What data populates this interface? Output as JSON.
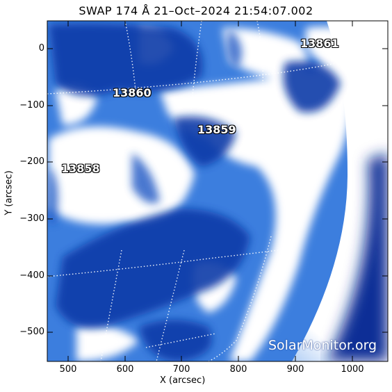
{
  "title": "SWAP 174 Å 21–Oct–2024 21:54:07.002",
  "axes": {
    "xlabel": "X (arcsec)",
    "ylabel": "Y (arcsec)",
    "xticks": [
      "500",
      "600",
      "700",
      "800",
      "900",
      "1000"
    ],
    "yticks": [
      "0",
      "−100",
      "−200",
      "−300",
      "−400",
      "−500"
    ]
  },
  "active_regions": [
    {
      "id": "13861"
    },
    {
      "id": "13860"
    },
    {
      "id": "13859"
    },
    {
      "id": "13858"
    }
  ],
  "watermark": "SolarMonitor.org",
  "colors": {
    "dark_blue": "#0a2f9a",
    "mid_blue": "#2f6fd6",
    "light_blue": "#8fb8f2",
    "white": "#ffffff"
  }
}
